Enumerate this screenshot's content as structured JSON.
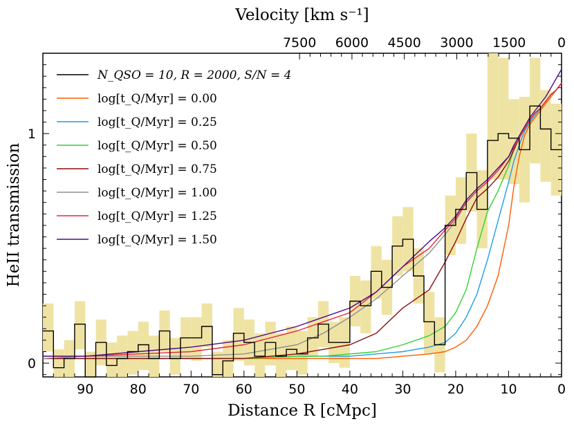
{
  "chart_data": {
    "type": "line",
    "xlabel": "Distance R [cMpc]",
    "ylabel": "HeII transmission",
    "top_xlabel": "Velocity [km s⁻¹]",
    "xlim": [
      98,
      0
    ],
    "ylim": [
      -0.06,
      1.35
    ],
    "x_ticks": [
      90,
      80,
      70,
      60,
      50,
      40,
      30,
      20,
      10,
      0
    ],
    "x_tick_labels": [
      "90",
      "80",
      "70",
      "60",
      "50",
      "40",
      "30",
      "20",
      "10",
      "0"
    ],
    "y_ticks": [
      0,
      1
    ],
    "y_tick_labels": [
      "0",
      "1"
    ],
    "top_ticks": [
      7500,
      6000,
      4500,
      3000,
      1500,
      0
    ],
    "top_tick_labels": [
      "7500",
      "6000",
      "4500",
      "3000",
      "1500",
      "0"
    ],
    "km_s_per_cMpc": 151.5,
    "legend_placement": "top-left",
    "legend": [
      {
        "label": "N_QSO = 10,  R = 2000,  S/N = 4",
        "color": "#000000"
      },
      {
        "label": "log[t_Q/Myr] = 0.00",
        "color": "#ff5a00"
      },
      {
        "label": "log[t_Q/Myr] = 0.25",
        "color": "#1f9ce6"
      },
      {
        "label": "log[t_Q/Myr] = 0.50",
        "color": "#32d232"
      },
      {
        "label": "log[t_Q/Myr] = 0.75",
        "color": "#8b0a0a"
      },
      {
        "label": "log[t_Q/Myr] = 1.00",
        "color": "#8f8f8f"
      },
      {
        "label": "log[t_Q/Myr] = 1.25",
        "color": "#e8243c"
      },
      {
        "label": "log[t_Q/Myr] = 1.50",
        "color": "#4b0a8a"
      }
    ],
    "stacked_spectrum": {
      "name": "N_QSO = 10,  R = 2000,  S/N = 4",
      "bin_width": 2.0,
      "bin_centers": [
        97,
        95,
        93,
        91,
        89,
        87,
        85,
        83,
        81,
        79,
        77,
        75,
        73,
        71,
        69,
        67,
        65,
        63,
        61,
        59,
        57,
        55,
        53,
        51,
        49,
        47,
        45,
        43,
        41,
        39,
        37,
        35,
        33,
        31,
        29,
        27,
        25,
        23,
        21,
        19,
        17,
        15,
        13,
        11,
        9,
        7,
        5,
        3,
        1
      ],
      "values": [
        0.14,
        -0.02,
        0.02,
        0.17,
        -0.08,
        0.09,
        -0.01,
        0.02,
        0.05,
        0.08,
        0.02,
        0.14,
        0.02,
        0.11,
        0.11,
        0.16,
        -0.05,
        0.01,
        0.13,
        0.09,
        0.03,
        0.09,
        0.03,
        0.06,
        0.04,
        0.11,
        0.17,
        0.09,
        0.09,
        0.27,
        0.25,
        0.4,
        0.33,
        0.51,
        0.54,
        0.38,
        0.18,
        0.08,
        0.6,
        0.67,
        0.83,
        0.67,
        0.97,
        1.0,
        0.98,
        0.93,
        1.12,
        1.02,
        0.93
      ]
    },
    "error_band": {
      "lower": [
        0.05,
        -0.1,
        -0.07,
        0.06,
        -0.22,
        -0.01,
        -0.13,
        -0.06,
        -0.05,
        -0.03,
        -0.06,
        0.05,
        -0.05,
        0.02,
        0.01,
        0.07,
        -0.15,
        -0.08,
        0.01,
        -0.01,
        -0.07,
        -0.01,
        -0.07,
        -0.03,
        -0.05,
        0.03,
        0.07,
        0.0,
        -0.02,
        0.16,
        0.13,
        0.28,
        0.21,
        0.38,
        0.4,
        0.26,
        0.04,
        -0.04,
        0.47,
        0.52,
        0.66,
        0.5,
        0.8,
        0.8,
        0.78,
        0.7,
        0.87,
        0.79,
        0.73
      ],
      "upper": [
        0.26,
        0.06,
        0.1,
        0.27,
        0.05,
        0.19,
        0.09,
        0.12,
        0.14,
        0.18,
        0.12,
        0.23,
        0.11,
        0.2,
        0.2,
        0.26,
        0.05,
        0.1,
        0.24,
        0.19,
        0.13,
        0.18,
        0.13,
        0.16,
        0.14,
        0.2,
        0.27,
        0.18,
        0.2,
        0.38,
        0.36,
        0.51,
        0.45,
        0.64,
        0.68,
        0.5,
        0.31,
        0.2,
        0.73,
        0.81,
        1.0,
        0.84,
        1.35,
        1.33,
        1.15,
        1.16,
        1.33,
        1.19,
        1.13
      ]
    },
    "series": [
      {
        "name": "log[t_Q/Myr] = 0.00",
        "color": "#ff5a00",
        "x": [
          98,
          90,
          80,
          70,
          60,
          50,
          45,
          40,
          35,
          30,
          25,
          22,
          20,
          18,
          16,
          14,
          12,
          10,
          9,
          8,
          7,
          6,
          5,
          4,
          3,
          2,
          1,
          0
        ],
        "y": [
          0.02,
          0.02,
          0.02,
          0.02,
          0.02,
          0.02,
          0.02,
          0.02,
          0.02,
          0.03,
          0.04,
          0.05,
          0.07,
          0.1,
          0.16,
          0.25,
          0.38,
          0.6,
          0.77,
          0.9,
          0.99,
          1.04,
          1.07,
          1.1,
          1.13,
          1.16,
          1.19,
          1.22
        ]
      },
      {
        "name": "log[t_Q/Myr] = 0.25",
        "color": "#1f9ce6",
        "x": [
          98,
          90,
          80,
          70,
          60,
          50,
          45,
          40,
          35,
          30,
          25,
          22,
          20,
          18,
          16,
          14,
          12,
          10,
          9,
          8,
          7,
          6,
          5,
          4,
          3,
          2,
          1,
          0
        ],
        "y": [
          0.02,
          0.02,
          0.02,
          0.02,
          0.02,
          0.03,
          0.03,
          0.03,
          0.04,
          0.05,
          0.07,
          0.09,
          0.13,
          0.2,
          0.3,
          0.45,
          0.62,
          0.79,
          0.88,
          0.95,
          1.01,
          1.05,
          1.08,
          1.11,
          1.14,
          1.17,
          1.19,
          1.22
        ]
      },
      {
        "name": "log[t_Q/Myr] = 0.50",
        "color": "#32d232",
        "x": [
          98,
          90,
          80,
          70,
          60,
          50,
          45,
          40,
          35,
          30,
          25,
          22,
          20,
          18,
          16,
          14,
          12,
          10,
          9,
          8,
          7,
          6,
          5,
          4,
          3,
          2,
          1,
          0
        ],
        "y": [
          0.02,
          0.02,
          0.02,
          0.02,
          0.02,
          0.03,
          0.03,
          0.04,
          0.05,
          0.08,
          0.12,
          0.16,
          0.22,
          0.32,
          0.5,
          0.66,
          0.75,
          0.86,
          0.93,
          0.98,
          1.02,
          1.06,
          1.09,
          1.11,
          1.14,
          1.17,
          1.19,
          1.22
        ]
      },
      {
        "name": "log[t_Q/Myr] = 0.75",
        "color": "#8b0a0a",
        "x": [
          98,
          90,
          80,
          70,
          60,
          50,
          45,
          40,
          35,
          30,
          25,
          22,
          20,
          18,
          16,
          14,
          12,
          10,
          9,
          8,
          7,
          6,
          5,
          4,
          3,
          2,
          1,
          0
        ],
        "y": [
          0.02,
          0.02,
          0.02,
          0.02,
          0.02,
          0.04,
          0.06,
          0.08,
          0.13,
          0.24,
          0.32,
          0.44,
          0.53,
          0.63,
          0.72,
          0.76,
          0.81,
          0.88,
          0.93,
          0.98,
          1.02,
          1.06,
          1.09,
          1.11,
          1.14,
          1.17,
          1.19,
          1.22
        ]
      },
      {
        "name": "log[t_Q/Myr] = 1.00",
        "color": "#8f8f8f",
        "x": [
          98,
          90,
          80,
          70,
          60,
          50,
          45,
          40,
          35,
          30,
          25,
          22,
          20,
          18,
          16,
          14,
          12,
          10,
          9,
          8,
          7,
          6,
          5,
          4,
          3,
          2,
          1,
          0
        ],
        "y": [
          0.02,
          0.03,
          0.03,
          0.03,
          0.04,
          0.08,
          0.13,
          0.2,
          0.28,
          0.38,
          0.48,
          0.56,
          0.62,
          0.7,
          0.75,
          0.79,
          0.84,
          0.9,
          0.94,
          0.98,
          1.02,
          1.06,
          1.09,
          1.11,
          1.14,
          1.17,
          1.19,
          1.22
        ]
      },
      {
        "name": "log[t_Q/Myr] = 1.25",
        "color": "#e8243c",
        "x": [
          98,
          90,
          80,
          70,
          60,
          50,
          45,
          40,
          35,
          30,
          25,
          22,
          20,
          18,
          16,
          14,
          12,
          10,
          9,
          8,
          7,
          6,
          5,
          4,
          3,
          2,
          1,
          0
        ],
        "y": [
          0.03,
          0.03,
          0.04,
          0.05,
          0.08,
          0.14,
          0.18,
          0.22,
          0.31,
          0.42,
          0.5,
          0.58,
          0.63,
          0.7,
          0.75,
          0.79,
          0.84,
          0.9,
          0.94,
          0.98,
          1.02,
          1.06,
          1.09,
          1.11,
          1.14,
          1.17,
          1.19,
          1.22
        ]
      },
      {
        "name": "log[t_Q/Myr] = 1.50",
        "color": "#4b0a8a",
        "x": [
          98,
          90,
          80,
          70,
          60,
          50,
          45,
          40,
          35,
          30,
          25,
          22,
          20,
          18,
          16,
          14,
          12,
          10,
          9,
          8,
          7,
          6,
          5,
          4,
          3,
          2,
          1,
          0
        ],
        "y": [
          0.03,
          0.03,
          0.05,
          0.07,
          0.1,
          0.16,
          0.2,
          0.24,
          0.31,
          0.42,
          0.53,
          0.59,
          0.64,
          0.71,
          0.76,
          0.8,
          0.85,
          0.9,
          0.95,
          0.99,
          1.03,
          1.07,
          1.1,
          1.13,
          1.16,
          1.2,
          1.24,
          1.28
        ]
      }
    ]
  }
}
